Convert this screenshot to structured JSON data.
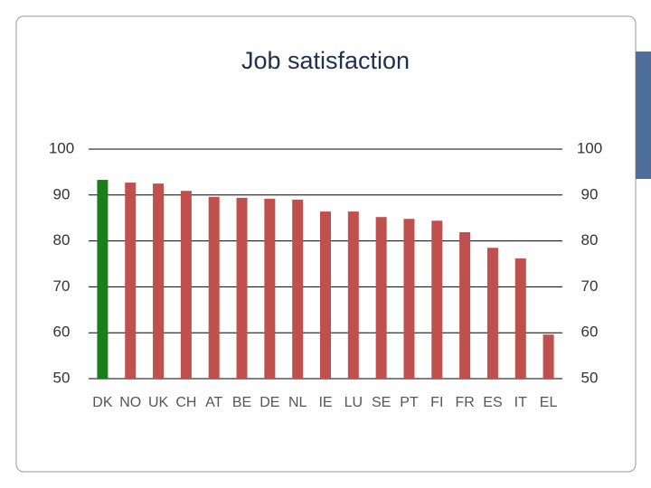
{
  "chart_data": {
    "type": "bar",
    "title": "Job satisfaction",
    "categories": [
      "DK",
      "NO",
      "UK",
      "CH",
      "AT",
      "BE",
      "DE",
      "NL",
      "IE",
      "LU",
      "SE",
      "PT",
      "FI",
      "FR",
      "ES",
      "IT",
      "EL"
    ],
    "values": [
      93.3,
      92.7,
      92.5,
      90.9,
      89.6,
      89.4,
      89.2,
      89.0,
      86.4,
      86.4,
      85.2,
      84.8,
      84.4,
      81.9,
      78.5,
      76.2,
      59.6
    ],
    "colors": [
      "#1a7f1a",
      "#c0504d",
      "#c0504d",
      "#c0504d",
      "#c0504d",
      "#c0504d",
      "#c0504d",
      "#c0504d",
      "#c0504d",
      "#c0504d",
      "#c0504d",
      "#c0504d",
      "#c0504d",
      "#c0504d",
      "#c0504d",
      "#c0504d",
      "#c0504d"
    ],
    "ylim": [
      50,
      100
    ],
    "yticks": [
      50,
      60,
      70,
      80,
      90,
      100
    ],
    "y2lim": [
      50,
      100
    ],
    "y2ticks": [
      50,
      60,
      70,
      80,
      90,
      100
    ],
    "grid": true
  }
}
